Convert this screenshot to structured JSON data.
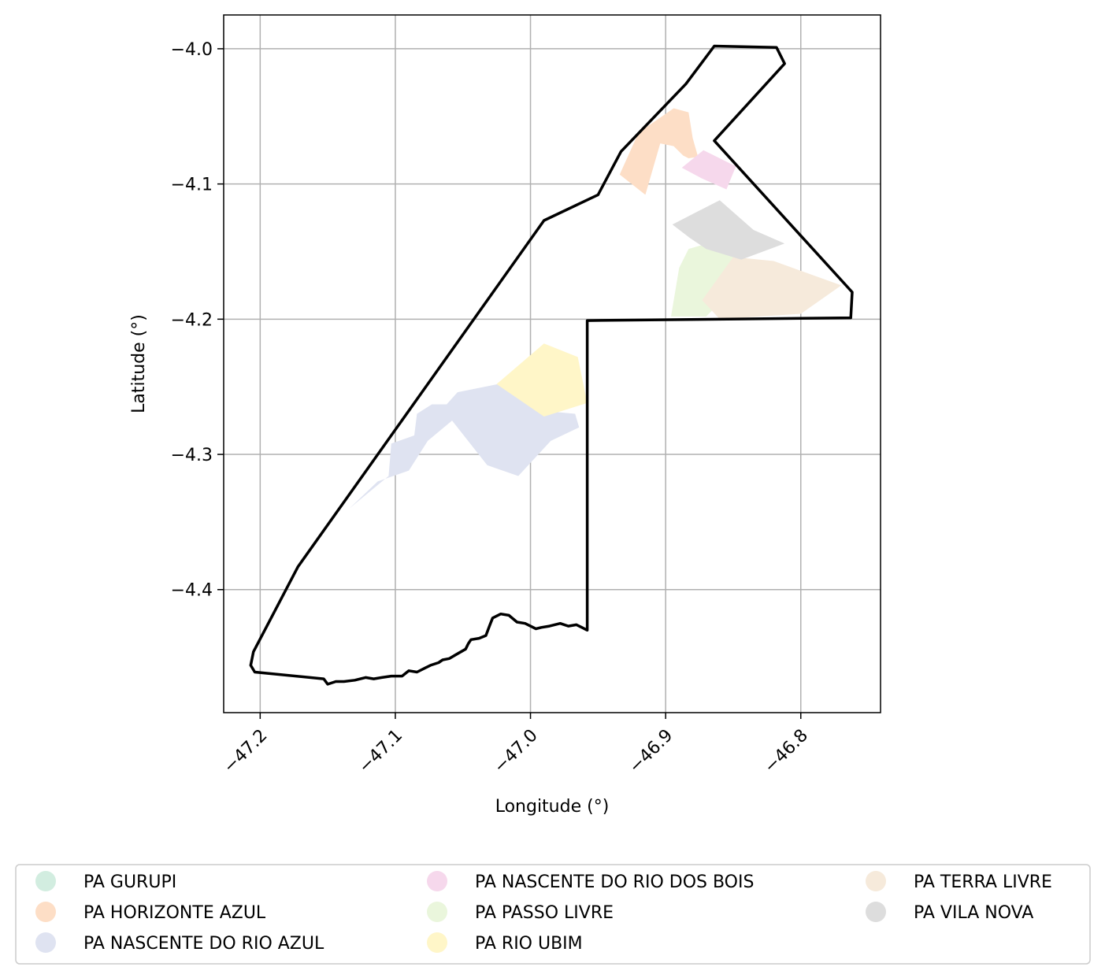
{
  "chart_data": {
    "type": "map",
    "title": "",
    "xlabel": "Longitude (°)",
    "ylabel": "Latitude (°)",
    "xlim": [
      -47.227,
      -46.741
    ],
    "ylim": [
      -4.491,
      -3.975
    ],
    "xticks": [
      -47.2,
      -47.1,
      -47.0,
      -46.9,
      -46.8
    ],
    "xtick_labels": [
      "−47.2",
      "−47.1",
      "−47.0",
      "−46.9",
      "−46.8"
    ],
    "yticks": [
      -4.0,
      -4.1,
      -4.2,
      -4.3,
      -4.4
    ],
    "ytick_labels": [
      "−4.0",
      "−4.1",
      "−4.2",
      "−4.3",
      "−4.4"
    ],
    "grid": true,
    "legend_position": "bottom",
    "legend_columns": 3,
    "boundary": {
      "color": "#000000",
      "coords": [
        [
          -46.864,
          -3.998
        ],
        [
          -46.818,
          -3.999
        ],
        [
          -46.812,
          -4.011
        ],
        [
          -46.864,
          -4.068
        ],
        [
          -46.762,
          -4.18
        ],
        [
          -46.763,
          -4.199
        ],
        [
          -46.958,
          -4.201
        ],
        [
          -46.958,
          -4.43
        ],
        [
          -46.962,
          -4.428
        ],
        [
          -46.966,
          -4.426
        ],
        [
          -46.972,
          -4.427
        ],
        [
          -46.978,
          -4.425
        ],
        [
          -46.986,
          -4.427
        ],
        [
          -46.992,
          -4.428
        ],
        [
          -46.996,
          -4.429
        ],
        [
          -47.0,
          -4.427
        ],
        [
          -47.004,
          -4.425
        ],
        [
          -47.01,
          -4.424
        ],
        [
          -47.016,
          -4.419
        ],
        [
          -47.022,
          -4.418
        ],
        [
          -47.028,
          -4.421
        ],
        [
          -47.03,
          -4.426
        ],
        [
          -47.033,
          -4.434
        ],
        [
          -47.038,
          -4.436
        ],
        [
          -47.044,
          -4.437
        ],
        [
          -47.046,
          -4.44
        ],
        [
          -47.048,
          -4.444
        ],
        [
          -47.055,
          -4.448
        ],
        [
          -47.06,
          -4.451
        ],
        [
          -47.065,
          -4.452
        ],
        [
          -47.068,
          -4.454
        ],
        [
          -47.074,
          -4.456
        ],
        [
          -47.078,
          -4.458
        ],
        [
          -47.084,
          -4.461
        ],
        [
          -47.09,
          -4.46
        ],
        [
          -47.095,
          -4.464
        ],
        [
          -47.103,
          -4.464
        ],
        [
          -47.11,
          -4.465
        ],
        [
          -47.116,
          -4.466
        ],
        [
          -47.122,
          -4.465
        ],
        [
          -47.13,
          -4.467
        ],
        [
          -47.138,
          -4.468
        ],
        [
          -47.144,
          -4.468
        ],
        [
          -47.15,
          -4.47
        ],
        [
          -47.153,
          -4.466
        ],
        [
          -47.204,
          -4.461
        ],
        [
          -47.207,
          -4.456
        ],
        [
          -47.205,
          -4.446
        ],
        [
          -47.172,
          -4.383
        ],
        [
          -46.99,
          -4.127
        ],
        [
          -46.95,
          -4.108
        ],
        [
          -46.933,
          -4.076
        ],
        [
          -46.885,
          -4.026
        ]
      ]
    },
    "series": [
      {
        "name": "PA GURUPI",
        "color": "#d2ede0",
        "regions": []
      },
      {
        "name": "PA HORIZONTE AZUL",
        "color": "#fddec6",
        "regions": [
          [
            [
              -46.92,
              -4.062
            ],
            [
              -46.894,
              -4.044
            ],
            [
              -46.883,
              -4.047
            ],
            [
              -46.88,
              -4.066
            ],
            [
              -46.876,
              -4.08
            ],
            [
              -46.883,
              -4.081
            ],
            [
              -46.887,
              -4.079
            ],
            [
              -46.894,
              -4.072
            ],
            [
              -46.904,
              -4.07
            ],
            [
              -46.915,
              -4.108
            ],
            [
              -46.934,
              -4.093
            ]
          ]
        ]
      },
      {
        "name": "PA NASCENTE DO RIO AZUL",
        "color": "#dfe3f1",
        "regions": [
          [
            [
              -47.134,
              -4.34
            ],
            [
              -47.105,
              -4.316
            ],
            [
              -47.103,
              -4.292
            ],
            [
              -47.086,
              -4.286
            ],
            [
              -47.084,
              -4.27
            ],
            [
              -47.073,
              -4.263
            ],
            [
              -47.062,
              -4.263
            ],
            [
              -47.054,
              -4.254
            ],
            [
              -47.024,
              -4.248
            ],
            [
              -46.988,
              -4.268
            ],
            [
              -46.967,
              -4.27
            ],
            [
              -46.964,
              -4.28
            ],
            [
              -46.985,
              -4.29
            ],
            [
              -47.009,
              -4.316
            ],
            [
              -47.032,
              -4.308
            ],
            [
              -47.058,
              -4.275
            ],
            [
              -47.076,
              -4.29
            ],
            [
              -47.09,
              -4.312
            ],
            [
              -47.113,
              -4.32
            ]
          ]
        ]
      },
      {
        "name": "PA NASCENTE DO RIO DOS BOIS",
        "color": "#f6d8ec",
        "regions": [
          [
            [
              -46.888,
              -4.088
            ],
            [
              -46.872,
              -4.075
            ],
            [
              -46.848,
              -4.087
            ],
            [
              -46.855,
              -4.104
            ],
            [
              -46.873,
              -4.096
            ]
          ]
        ]
      },
      {
        "name": "PA PASSO LIVRE",
        "color": "#eaf6dc",
        "regions": [
          [
            [
              -46.896,
              -4.198
            ],
            [
              -46.89,
              -4.162
            ],
            [
              -46.883,
              -4.148
            ],
            [
              -46.858,
              -4.141
            ],
            [
              -46.845,
              -4.158
            ],
            [
              -46.852,
              -4.18
            ],
            [
              -46.87,
              -4.198
            ]
          ]
        ]
      },
      {
        "name": "PA RIO UBIM",
        "color": "#fff6c8",
        "regions": [
          [
            [
              -47.025,
              -4.248
            ],
            [
              -46.99,
              -4.218
            ],
            [
              -46.965,
              -4.228
            ],
            [
              -46.958,
              -4.262
            ],
            [
              -46.99,
              -4.272
            ]
          ]
        ]
      },
      {
        "name": "PA TERRA LIVRE",
        "color": "#f6eadb",
        "regions": [
          [
            [
              -46.873,
              -4.186
            ],
            [
              -46.85,
              -4.154
            ],
            [
              -46.82,
              -4.157
            ],
            [
              -46.77,
              -4.175
            ],
            [
              -46.8,
              -4.196
            ],
            [
              -46.86,
              -4.2
            ]
          ]
        ]
      },
      {
        "name": "PA VILA NOVA",
        "color": "#dddddd",
        "regions": [
          [
            [
              -46.895,
              -4.13
            ],
            [
              -46.86,
              -4.112
            ],
            [
              -46.835,
              -4.134
            ],
            [
              -46.812,
              -4.144
            ],
            [
              -46.844,
              -4.156
            ],
            [
              -46.87,
              -4.148
            ],
            [
              -46.882,
              -4.14
            ]
          ]
        ]
      }
    ]
  }
}
